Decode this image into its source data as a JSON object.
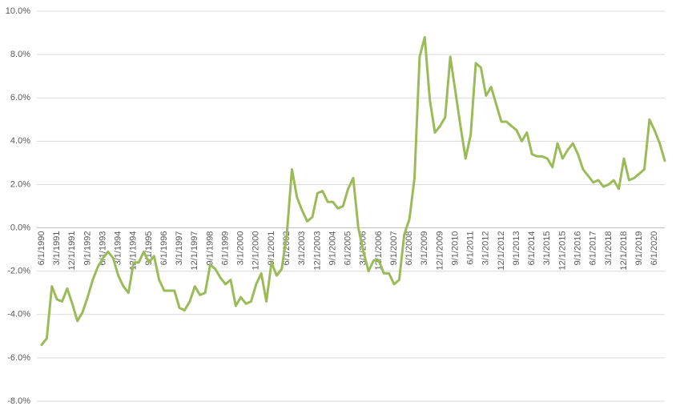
{
  "chart_data": {
    "type": "line",
    "categories": [
      "6/1/1990",
      null,
      null,
      "3/1/1991",
      null,
      null,
      "12/1/1991",
      null,
      null,
      "9/1/1992",
      null,
      null,
      "6/1/1993",
      null,
      null,
      "3/1/1994",
      null,
      null,
      "12/1/1994",
      null,
      null,
      "9/1/1995",
      null,
      null,
      "6/1/1996",
      null,
      null,
      "3/1/1997",
      null,
      null,
      "12/1/1997",
      null,
      null,
      "9/1/1998",
      null,
      null,
      "6/1/1999",
      null,
      null,
      "3/1/2000",
      null,
      null,
      "12/1/2000",
      null,
      null,
      "9/1/2001",
      null,
      null,
      "6/1/2002",
      null,
      null,
      "3/1/2003",
      null,
      null,
      "12/1/2003",
      null,
      null,
      "9/1/2004",
      null,
      null,
      "6/1/2005",
      null,
      null,
      "3/1/2006",
      null,
      null,
      "12/1/2006",
      null,
      null,
      "9/1/2007",
      null,
      null,
      "6/1/2008",
      null,
      null,
      "3/1/2009",
      null,
      null,
      "12/1/2009",
      null,
      null,
      "9/1/2010",
      null,
      null,
      "6/1/2011",
      null,
      null,
      "3/1/2012",
      null,
      null,
      "12/1/2012",
      null,
      null,
      "9/1/2013",
      null,
      null,
      "6/1/2014",
      null,
      null,
      "3/1/2015",
      null,
      null,
      "12/1/2015",
      null,
      null,
      "9/1/2016",
      null,
      null,
      "6/1/2017",
      null,
      null,
      "3/1/2018",
      null,
      null,
      "12/1/2018",
      null,
      null,
      "9/1/2019",
      null,
      null,
      "6/1/2020",
      null,
      null
    ],
    "values": [
      -5.4,
      -5.1,
      -2.7,
      -3.3,
      -3.4,
      -2.8,
      -3.5,
      -4.3,
      -3.9,
      -3.2,
      -2.4,
      -1.8,
      -1.4,
      -1.1,
      -1.4,
      -2.2,
      -2.7,
      -3.0,
      -1.6,
      -1.6,
      -1.1,
      -1.6,
      -1.3,
      -2.4,
      -2.9,
      -2.9,
      -2.9,
      -3.7,
      -3.8,
      -3.4,
      -2.7,
      -3.1,
      -3.0,
      -1.7,
      -1.9,
      -2.3,
      -2.6,
      -2.4,
      -3.6,
      -3.2,
      -3.5,
      -3.4,
      -2.6,
      -2.1,
      -3.4,
      -1.6,
      -2.2,
      -1.9,
      -0.3,
      2.7,
      1.4,
      0.8,
      0.3,
      0.5,
      1.6,
      1.7,
      1.2,
      1.2,
      0.9,
      1.0,
      1.8,
      2.3,
      0.0,
      -1.1,
      -2.0,
      -1.5,
      -1.5,
      -2.1,
      -2.1,
      -2.6,
      -2.4,
      -0.3,
      0.4,
      2.3,
      7.9,
      8.8,
      5.9,
      4.4,
      4.7,
      5.1,
      7.9,
      6.3,
      4.7,
      3.2,
      4.3,
      7.6,
      7.4,
      6.1,
      6.5,
      5.7,
      4.9,
      4.9,
      4.7,
      4.5,
      4.0,
      4.4,
      3.4,
      3.3,
      3.3,
      3.2,
      2.8,
      3.9,
      3.2,
      3.6,
      3.9,
      3.4,
      2.7,
      2.4,
      2.1,
      2.2,
      1.9,
      2.0,
      2.2,
      1.8,
      3.2,
      2.2,
      2.3,
      2.5,
      2.7,
      5.0,
      4.5,
      3.9,
      3.1
    ],
    "color": "#9bbb59",
    "ylim": [
      -8,
      10
    ],
    "yticks": [
      {
        "value": -8,
        "label": "-8.0%"
      },
      {
        "value": -6,
        "label": "-6.0%"
      },
      {
        "value": -4,
        "label": "-4.0%"
      },
      {
        "value": -2,
        "label": "-2.0%"
      },
      {
        "value": 0,
        "label": "0.0%"
      },
      {
        "value": 2,
        "label": "2.0%"
      },
      {
        "value": 4,
        "label": "4.0%"
      },
      {
        "value": 6,
        "label": "6.0%"
      },
      {
        "value": 8,
        "label": "8.0%"
      },
      {
        "value": 10,
        "label": "10.0%"
      }
    ],
    "grid": true
  }
}
